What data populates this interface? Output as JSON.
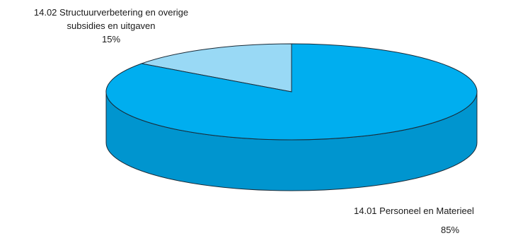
{
  "chart_data": {
    "type": "pie",
    "slices": [
      {
        "label": "14.01 Personeel en Materieel",
        "percent_label": "85%",
        "value": 85,
        "color": "#00aeef",
        "side_color": "#0095cf"
      },
      {
        "label_line1": "14.02 Structuurverbetering en overige",
        "label_line2": "subsidies en uitgaven",
        "percent_label": "15%",
        "value": 15,
        "color": "#99d9f5"
      }
    ],
    "style": "3d",
    "legend": "none"
  }
}
